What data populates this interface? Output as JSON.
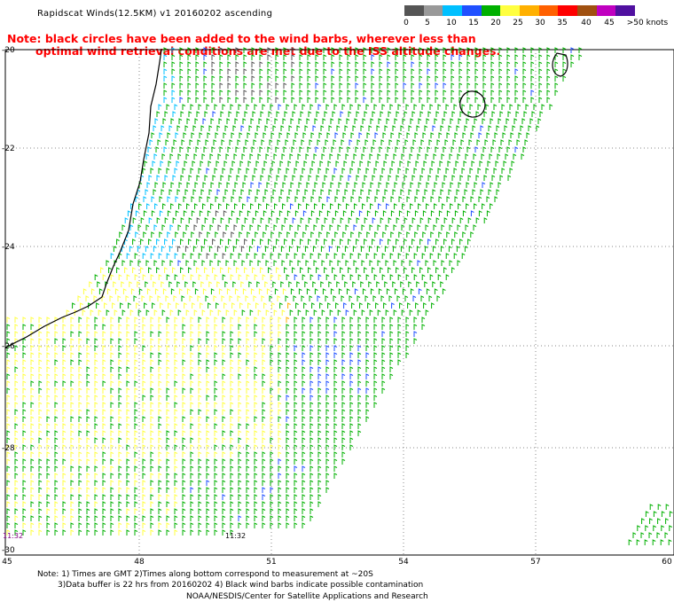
{
  "title": "Rapidscat Winds(12.5KM) v1 20160202 ascending",
  "note_line1": "Note: black circles have been added to the wind barbs, wherever less than",
  "note_line2": "optimal wind retrieval conditions are met due to the ISS altitude changes.",
  "legend": {
    "labels": [
      "0",
      "5",
      "10",
      "15",
      "20",
      "25",
      "30",
      "35",
      "40",
      "45",
      ">50 knots"
    ],
    "colors": [
      "#555555",
      "#999999",
      "#00c0ff",
      "#2050ff",
      "#00b000",
      "#ffff40",
      "#ffb000",
      "#ff6000",
      "#ff0000",
      "#a05010",
      "#c000c0",
      "#5010a0"
    ]
  },
  "lat_labels": [
    "-20",
    "-22",
    "-24",
    "-26",
    "-28",
    "-30"
  ],
  "lon_labels": [
    "45",
    "48",
    "51",
    "54",
    "57",
    "60"
  ],
  "time_labels": [
    "11:32",
    "11:32"
  ],
  "footnote1": "Note: 1) Times are GMT 2)Times along bottom correspond to measurement at ~20S",
  "footnote2": "3)Data buffer is 22 hrs from 20160202 4) Black wind barbs indicate possible contamination",
  "credit": "NOAA/NESDIS/Center for Satellite Applications and Research"
}
